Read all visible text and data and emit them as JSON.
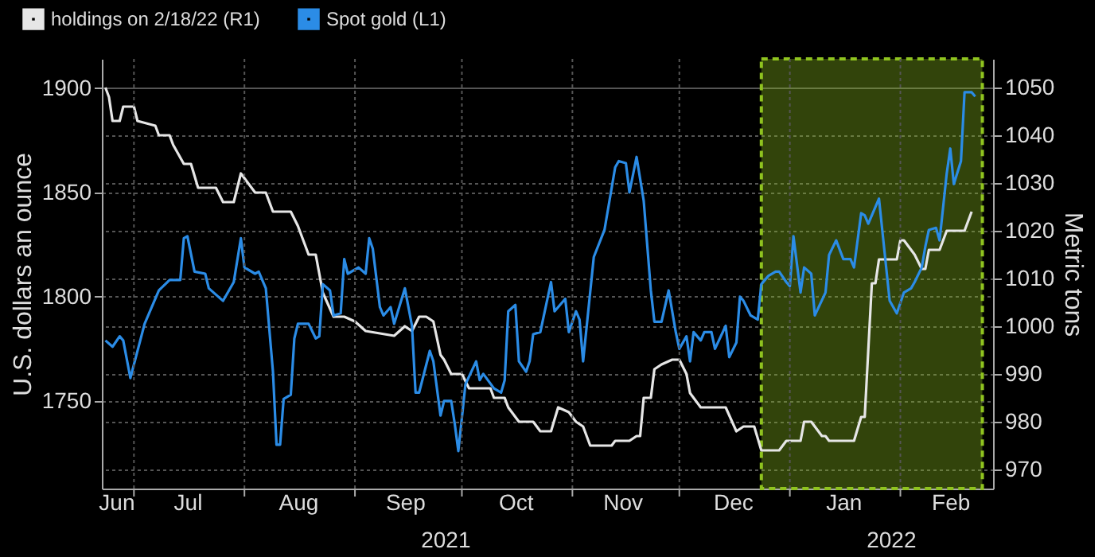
{
  "chart_data": {
    "type": "line",
    "x": [
      "2021-06-23",
      "2021-06-24",
      "2021-06-25",
      "2021-06-27",
      "2021-06-28",
      "2021-07-01",
      "2021-07-02",
      "2021-07-07",
      "2021-07-08",
      "2021-07-11",
      "2021-07-12",
      "2021-07-15",
      "2021-07-17",
      "2021-07-19",
      "2021-07-24",
      "2021-07-26",
      "2021-07-29",
      "2021-07-31",
      "2021-08-01",
      "2021-08-04",
      "2021-08-07",
      "2021-08-09",
      "2021-08-14",
      "2021-08-16",
      "2021-08-19",
      "2021-08-21",
      "2021-08-23",
      "2021-08-26",
      "2021-08-29",
      "2021-09-01",
      "2021-09-04",
      "2021-09-12",
      "2021-09-15",
      "2021-09-17",
      "2021-09-19",
      "2021-09-21",
      "2021-09-23",
      "2021-09-25",
      "2021-09-26",
      "2021-09-28",
      "2021-10-01",
      "2021-10-03",
      "2021-10-09",
      "2021-10-10",
      "2021-10-13",
      "2021-10-14",
      "2021-10-17",
      "2021-10-21",
      "2021-10-23",
      "2021-10-26",
      "2021-10-28",
      "2021-10-31",
      "2021-11-02",
      "2021-11-04",
      "2021-11-06",
      "2021-11-12",
      "2021-11-13",
      "2021-11-17",
      "2021-11-19",
      "2021-11-20",
      "2021-11-21",
      "2021-11-23",
      "2021-11-24",
      "2021-11-26",
      "2021-11-29",
      "2021-12-01",
      "2021-12-03",
      "2021-12-04",
      "2021-12-07",
      "2021-12-14",
      "2021-12-17",
      "2021-12-19",
      "2021-12-22",
      "2021-12-24",
      "2021-12-29",
      "2021-12-31",
      "2022-01-04",
      "2022-01-05",
      "2022-01-07",
      "2022-01-10",
      "2022-01-11",
      "2022-01-12",
      "2022-01-19",
      "2022-01-21",
      "2022-01-22",
      "2022-01-24",
      "2022-01-25",
      "2022-01-26",
      "2022-01-28",
      "2022-01-31",
      "2022-02-01",
      "2022-02-02",
      "2022-02-05",
      "2022-02-07",
      "2022-02-08",
      "2022-02-09",
      "2022-02-12",
      "2022-02-14",
      "2022-02-19",
      "2022-02-21"
    ],
    "series": [
      {
        "name": "holdings on 2/18/22 (R1)",
        "color": "#e6e6e6",
        "axis": "y2",
        "values": [
          1050,
          1048,
          1043,
          1043,
          1046,
          1046,
          1043,
          1042,
          1040,
          1040,
          1038,
          1034,
          1034,
          1029,
          1029,
          1026,
          1026,
          1032,
          1031,
          1028,
          1028,
          1024,
          1024,
          1021,
          1015,
          1015,
          1007,
          1002,
          1002,
          1001,
          999,
          998,
          1000,
          999,
          1002,
          1002,
          1001,
          994,
          993,
          990,
          990,
          987,
          987,
          985,
          985,
          983,
          980,
          980,
          978,
          978,
          983,
          982,
          980,
          979,
          975,
          975,
          976,
          976,
          977,
          977,
          985,
          985,
          991,
          992,
          993,
          993,
          990,
          986,
          983,
          983,
          978,
          979,
          979,
          974,
          974,
          976,
          976,
          980,
          980,
          977,
          977,
          976,
          976,
          981,
          981,
          1009,
          1009,
          1014,
          1014,
          1014,
          1018,
          1018,
          1015,
          1012,
          1012,
          1016,
          1016,
          1020,
          1020,
          1024
        ]
      },
      {
        "name": "Spot gold (L1)",
        "color": "#2b8ce6",
        "axis": "y",
        "x": [
          "2021-06-23",
          "2021-06-25",
          "2021-06-27",
          "2021-06-28",
          "2021-06-30",
          "2021-07-04",
          "2021-07-08",
          "2021-07-11",
          "2021-07-14",
          "2021-07-15",
          "2021-07-16",
          "2021-07-18",
          "2021-07-21",
          "2021-07-22",
          "2021-07-26",
          "2021-07-29",
          "2021-07-31",
          "2021-08-01",
          "2021-08-04",
          "2021-08-05",
          "2021-08-07",
          "2021-08-09",
          "2021-08-10",
          "2021-08-11",
          "2021-08-12",
          "2021-08-14",
          "2021-08-15",
          "2021-08-16",
          "2021-08-19",
          "2021-08-21",
          "2021-08-22",
          "2021-08-23",
          "2021-08-25",
          "2021-08-26",
          "2021-08-28",
          "2021-08-29",
          "2021-08-30",
          "2021-09-02",
          "2021-09-04",
          "2021-09-05",
          "2021-09-06",
          "2021-09-08",
          "2021-09-09",
          "2021-09-11",
          "2021-09-12",
          "2021-09-15",
          "2021-09-17",
          "2021-09-18",
          "2021-09-19",
          "2021-09-22",
          "2021-09-23",
          "2021-09-25",
          "2021-09-26",
          "2021-09-28",
          "2021-09-29",
          "2021-09-30",
          "2021-10-02",
          "2021-10-05",
          "2021-10-06",
          "2021-10-07",
          "2021-10-10",
          "2021-10-12",
          "2021-10-13",
          "2021-10-14",
          "2021-10-16",
          "2021-10-17",
          "2021-10-19",
          "2021-10-20",
          "2021-10-21",
          "2021-10-23",
          "2021-10-26",
          "2021-10-27",
          "2021-10-30",
          "2021-10-31",
          "2021-11-02",
          "2021-11-03",
          "2021-11-04",
          "2021-11-07",
          "2021-11-10",
          "2021-11-13",
          "2021-11-14",
          "2021-11-16",
          "2021-11-17",
          "2021-11-19",
          "2021-11-21",
          "2021-11-23",
          "2021-11-24",
          "2021-11-26",
          "2021-11-28",
          "2021-11-30",
          "2021-12-01",
          "2021-12-03",
          "2021-12-04",
          "2021-12-05",
          "2021-12-07",
          "2021-12-08",
          "2021-12-10",
          "2021-12-11",
          "2021-12-14",
          "2021-12-15",
          "2021-12-17",
          "2021-12-18",
          "2021-12-19",
          "2021-12-21",
          "2021-12-23",
          "2021-12-24",
          "2021-12-26",
          "2021-12-28",
          "2021-12-29",
          "2021-12-31",
          "2022-01-01",
          "2022-01-02",
          "2022-01-04",
          "2022-01-05",
          "2022-01-07",
          "2022-01-08",
          "2022-01-11",
          "2022-01-12",
          "2022-01-14",
          "2022-01-16",
          "2022-01-18",
          "2022-01-19",
          "2022-01-21",
          "2022-01-22",
          "2022-01-23",
          "2022-01-25",
          "2022-01-26",
          "2022-01-29",
          "2022-01-31",
          "2022-02-01",
          "2022-02-02",
          "2022-02-04",
          "2022-02-05",
          "2022-02-07",
          "2022-02-08",
          "2022-02-09",
          "2022-02-11",
          "2022-02-12",
          "2022-02-14",
          "2022-02-15",
          "2022-02-16",
          "2022-02-18",
          "2022-02-19",
          "2022-02-21",
          "2022-02-22"
        ],
        "values": [
          1779,
          1776,
          1781,
          1779,
          1761,
          1787,
          1803,
          1808,
          1808,
          1828,
          1829,
          1812,
          1811,
          1804,
          1798,
          1807,
          1828,
          1814,
          1811,
          1812,
          1804,
          1764,
          1729,
          1729,
          1751,
          1753,
          1780,
          1787,
          1787,
          1780,
          1781,
          1806,
          1803,
          1791,
          1792,
          1818,
          1811,
          1814,
          1811,
          1828,
          1823,
          1795,
          1791,
          1795,
          1787,
          1804,
          1786,
          1754,
          1754,
          1774,
          1769,
          1743,
          1750,
          1750,
          1739,
          1726,
          1758,
          1769,
          1760,
          1763,
          1756,
          1754,
          1760,
          1793,
          1796,
          1769,
          1764,
          1769,
          1782,
          1783,
          1807,
          1793,
          1799,
          1783,
          1793,
          1789,
          1769,
          1819,
          1832,
          1862,
          1865,
          1864,
          1850,
          1867,
          1846,
          1803,
          1788,
          1788,
          1803,
          1783,
          1775,
          1781,
          1769,
          1783,
          1779,
          1783,
          1783,
          1775,
          1786,
          1771,
          1778,
          1800,
          1798,
          1791,
          1789,
          1806,
          1810,
          1812,
          1812,
          1807,
          1805,
          1829,
          1802,
          1814,
          1811,
          1791,
          1802,
          1820,
          1827,
          1818,
          1818,
          1814,
          1840,
          1839,
          1835,
          1843,
          1847,
          1798,
          1792,
          1797,
          1802,
          1804,
          1807,
          1814,
          1824,
          1832,
          1833,
          1827,
          1859,
          1871,
          1854,
          1865,
          1898,
          1898,
          1896
        ]
      }
    ],
    "ylabel": "U.S. dollars an ounce",
    "y2label": "Metric tons",
    "xlim": [
      "2021-06-22",
      "2022-02-27"
    ],
    "xticks": [
      {
        "value": "2021-06-26",
        "label": "Jun"
      },
      {
        "value": "2021-07-01",
        "label": null
      },
      {
        "value": "2021-07-16",
        "label": "Jul"
      },
      {
        "value": "2021-08-01",
        "label": null
      },
      {
        "value": "2021-08-16",
        "label": "Aug"
      },
      {
        "value": "2021-09-01",
        "label": null
      },
      {
        "value": "2021-09-15",
        "label": "Sep"
      },
      {
        "value": "2021-10-01",
        "label": null
      },
      {
        "value": "2021-10-16",
        "label": "Oct"
      },
      {
        "value": "2021-11-01",
        "label": null
      },
      {
        "value": "2021-11-15",
        "label": "Nov"
      },
      {
        "value": "2021-12-01",
        "label": null
      },
      {
        "value": "2021-12-16",
        "label": "Dec"
      },
      {
        "value": "2022-01-01",
        "label": null
      },
      {
        "value": "2022-01-16",
        "label": "Jan"
      },
      {
        "value": "2022-02-01",
        "label": null
      },
      {
        "value": "2022-02-15",
        "label": "Feb"
      }
    ],
    "ylim": [
      1708,
      1914
    ],
    "yticks": [
      1750,
      1800,
      1850,
      1900
    ],
    "y2lim": [
      966,
      1056
    ],
    "y2ticks": [
      970,
      980,
      990,
      1000,
      1010,
      1020,
      1030,
      1040,
      1050
    ],
    "bands": [
      {
        "axis": "x",
        "from": "2021-12-24",
        "to": "2022-02-24",
        "color": "#8fc31f"
      }
    ],
    "annotations": [
      "2021",
      "2022"
    ],
    "grid": true,
    "legend": "top left",
    "line_style": "solid",
    "marker": "none"
  }
}
